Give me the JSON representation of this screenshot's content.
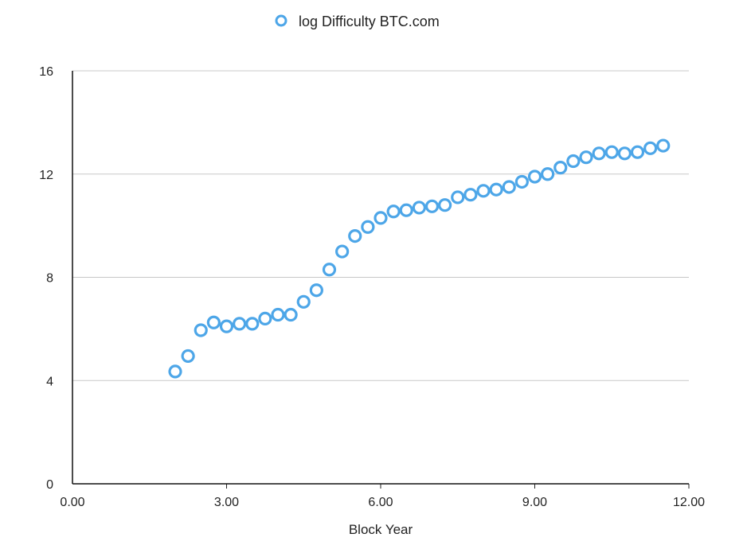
{
  "chart_data": {
    "type": "scatter",
    "title": "",
    "xlabel": "Block Year",
    "ylabel": "",
    "xlim": [
      0,
      12
    ],
    "ylim": [
      0,
      16
    ],
    "x_ticks": [
      "0.00",
      "3.00",
      "6.00",
      "9.00",
      "12.00"
    ],
    "y_ticks": [
      "0",
      "4",
      "8",
      "12",
      "16"
    ],
    "grid": "horizontal",
    "legend": "top-center",
    "marker_color": "#4da6e8",
    "series": [
      {
        "name": "log Difficulty BTC.com",
        "points": [
          {
            "x": 2.0,
            "y": 4.35
          },
          {
            "x": 2.25,
            "y": 4.95
          },
          {
            "x": 2.5,
            "y": 5.95
          },
          {
            "x": 2.75,
            "y": 6.25
          },
          {
            "x": 3.0,
            "y": 6.1
          },
          {
            "x": 3.25,
            "y": 6.2
          },
          {
            "x": 3.5,
            "y": 6.2
          },
          {
            "x": 3.75,
            "y": 6.4
          },
          {
            "x": 4.0,
            "y": 6.55
          },
          {
            "x": 4.25,
            "y": 6.55
          },
          {
            "x": 4.5,
            "y": 7.05
          },
          {
            "x": 4.75,
            "y": 7.5
          },
          {
            "x": 5.0,
            "y": 8.3
          },
          {
            "x": 5.25,
            "y": 9.0
          },
          {
            "x": 5.5,
            "y": 9.6
          },
          {
            "x": 5.75,
            "y": 9.95
          },
          {
            "x": 6.0,
            "y": 10.3
          },
          {
            "x": 6.25,
            "y": 10.55
          },
          {
            "x": 6.5,
            "y": 10.6
          },
          {
            "x": 6.75,
            "y": 10.7
          },
          {
            "x": 7.0,
            "y": 10.75
          },
          {
            "x": 7.25,
            "y": 10.8
          },
          {
            "x": 7.5,
            "y": 11.1
          },
          {
            "x": 7.75,
            "y": 11.2
          },
          {
            "x": 8.0,
            "y": 11.35
          },
          {
            "x": 8.25,
            "y": 11.4
          },
          {
            "x": 8.5,
            "y": 11.5
          },
          {
            "x": 8.75,
            "y": 11.7
          },
          {
            "x": 9.0,
            "y": 11.9
          },
          {
            "x": 9.25,
            "y": 12.0
          },
          {
            "x": 9.5,
            "y": 12.25
          },
          {
            "x": 9.75,
            "y": 12.5
          },
          {
            "x": 10.0,
            "y": 12.65
          },
          {
            "x": 10.25,
            "y": 12.8
          },
          {
            "x": 10.5,
            "y": 12.85
          },
          {
            "x": 10.75,
            "y": 12.8
          },
          {
            "x": 11.0,
            "y": 12.85
          },
          {
            "x": 11.25,
            "y": 13.0
          },
          {
            "x": 11.5,
            "y": 13.1
          }
        ]
      }
    ]
  }
}
